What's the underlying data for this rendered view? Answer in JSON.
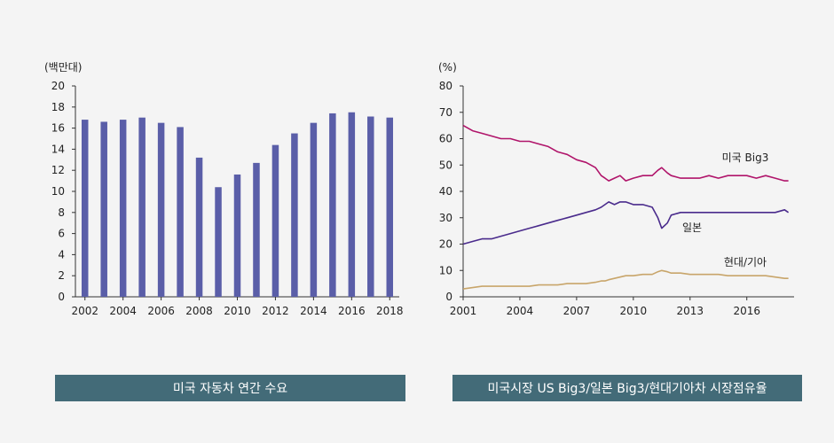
{
  "chart_data": [
    {
      "type": "bar",
      "unit_label": "(백만대)",
      "categories": [
        "2002",
        "2003",
        "2004",
        "2005",
        "2006",
        "2007",
        "2008",
        "2009",
        "2010",
        "2011",
        "2012",
        "2013",
        "2014",
        "2015",
        "2016",
        "2017",
        "2018"
      ],
      "values": [
        16.8,
        16.6,
        16.8,
        17.0,
        16.5,
        16.1,
        13.2,
        10.4,
        11.6,
        12.7,
        14.4,
        15.5,
        16.5,
        17.4,
        17.5,
        17.1,
        17.0
      ],
      "xticks": [
        "2002",
        "2004",
        "2006",
        "2008",
        "2010",
        "2012",
        "2014",
        "2016",
        "2018"
      ],
      "yticks": [
        "0",
        "2",
        "4",
        "6",
        "8",
        "10",
        "12",
        "14",
        "16",
        "18",
        "20"
      ],
      "ylim": [
        0,
        20
      ],
      "bar_color": "#5a5ea8",
      "caption": "미국 자동차 연간 수요"
    },
    {
      "type": "line",
      "unit_label": "(%)",
      "xlim": [
        2001,
        2018.5
      ],
      "ylim": [
        0,
        80
      ],
      "xticks": [
        "2001",
        "2004",
        "2007",
        "2010",
        "2013",
        "2016"
      ],
      "yticks": [
        "0",
        "10",
        "20",
        "30",
        "40",
        "50",
        "60",
        "70",
        "80"
      ],
      "series": [
        {
          "name": "미국 Big3",
          "color": "#b0146a",
          "x": [
            2001.0,
            2001.5,
            2002.0,
            2002.5,
            2003.0,
            2003.5,
            2004.0,
            2004.5,
            2005.0,
            2005.5,
            2006.0,
            2006.5,
            2007.0,
            2007.5,
            2008.0,
            2008.3,
            2008.5,
            2008.7,
            2009.0,
            2009.3,
            2009.6,
            2010.0,
            2010.5,
            2011.0,
            2011.3,
            2011.5,
            2011.8,
            2012.0,
            2012.5,
            2013.0,
            2013.5,
            2014.0,
            2014.5,
            2015.0,
            2015.5,
            2016.0,
            2016.5,
            2017.0,
            2017.5,
            2018.0,
            2018.2
          ],
          "y": [
            65,
            63,
            62,
            61,
            60,
            60,
            59,
            59,
            58,
            57,
            55,
            54,
            52,
            51,
            49,
            46,
            45,
            44,
            45,
            46,
            44,
            45,
            46,
            46,
            48,
            49,
            47,
            46,
            45,
            45,
            45,
            46,
            45,
            46,
            46,
            46,
            45,
            46,
            45,
            44,
            44
          ]
        },
        {
          "name": "일본",
          "color": "#4a2b8c",
          "x": [
            2001.0,
            2001.5,
            2002.0,
            2002.5,
            2003.0,
            2003.5,
            2004.0,
            2004.5,
            2005.0,
            2005.5,
            2006.0,
            2006.5,
            2007.0,
            2007.5,
            2008.0,
            2008.3,
            2008.5,
            2008.7,
            2009.0,
            2009.3,
            2009.6,
            2010.0,
            2010.5,
            2011.0,
            2011.3,
            2011.5,
            2011.8,
            2012.0,
            2012.5,
            2013.0,
            2013.5,
            2014.0,
            2014.5,
            2015.0,
            2015.5,
            2016.0,
            2016.5,
            2017.0,
            2017.5,
            2018.0,
            2018.2
          ],
          "y": [
            20,
            21,
            22,
            22,
            23,
            24,
            25,
            26,
            27,
            28,
            29,
            30,
            31,
            32,
            33,
            34,
            35,
            36,
            35,
            36,
            36,
            35,
            35,
            34,
            30,
            26,
            28,
            31,
            32,
            32,
            32,
            32,
            32,
            32,
            32,
            32,
            32,
            32,
            32,
            33,
            32
          ]
        },
        {
          "name": "현대/기아",
          "color": "#c8a56a",
          "x": [
            2001.0,
            2001.5,
            2002.0,
            2002.5,
            2003.0,
            2003.5,
            2004.0,
            2004.5,
            2005.0,
            2005.5,
            2006.0,
            2006.5,
            2007.0,
            2007.5,
            2008.0,
            2008.3,
            2008.5,
            2008.7,
            2009.0,
            2009.3,
            2009.6,
            2010.0,
            2010.5,
            2011.0,
            2011.3,
            2011.5,
            2011.8,
            2012.0,
            2012.5,
            2013.0,
            2013.5,
            2014.0,
            2014.5,
            2015.0,
            2015.5,
            2016.0,
            2016.5,
            2017.0,
            2017.5,
            2018.0,
            2018.2
          ],
          "y": [
            3,
            3.5,
            4,
            4,
            4,
            4,
            4,
            4,
            4.5,
            4.5,
            4.5,
            5,
            5,
            5,
            5.5,
            6,
            6,
            6.5,
            7,
            7.5,
            8,
            8,
            8.5,
            8.5,
            9.5,
            10,
            9.5,
            9,
            9,
            8.5,
            8.5,
            8.5,
            8.5,
            8,
            8,
            8,
            8,
            8,
            7.5,
            7,
            7
          ]
        }
      ],
      "caption": "미국시장 US Big3/일본 Big3/현대기아차 시장점유율"
    }
  ]
}
